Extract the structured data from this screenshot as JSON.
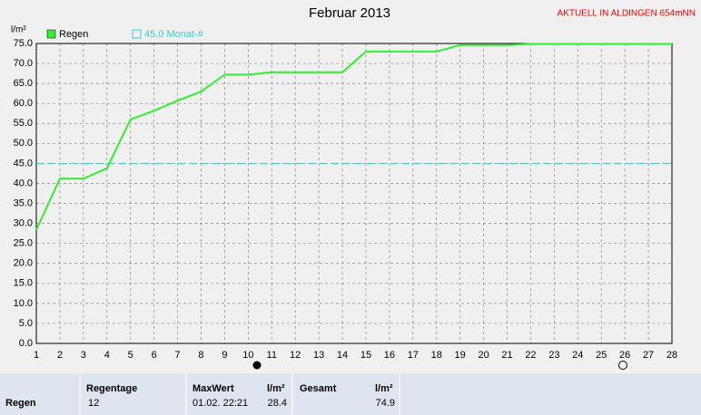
{
  "chart_data": {
    "type": "line",
    "title": "Februar 2013",
    "annotation": "AKTUELL IN ALDINGEN 654mNN",
    "y_label": "l/m²",
    "x": [
      1,
      2,
      3,
      4,
      5,
      6,
      7,
      8,
      9,
      10,
      11,
      12,
      13,
      14,
      15,
      16,
      17,
      18,
      19,
      20,
      21,
      22,
      23,
      24,
      25,
      26,
      27,
      28
    ],
    "series": [
      {
        "name": "Regen",
        "color": "#33ee33",
        "values": [
          28.4,
          41.2,
          41.2,
          43.8,
          56,
          58.2,
          60.7,
          63,
          67.2,
          67.2,
          67.8,
          67.8,
          67.8,
          67.8,
          73,
          73,
          73,
          73,
          74.6,
          74.6,
          74.6,
          74.9,
          74.9,
          74.9,
          74.9,
          74.9,
          74.9,
          74.9
        ]
      }
    ],
    "reference": {
      "value": 45,
      "label": "45.0 Monat-#",
      "color": "#33cccc"
    },
    "xlim": [
      1,
      28
    ],
    "xticks": [
      1,
      2,
      3,
      4,
      5,
      6,
      7,
      8,
      9,
      10,
      11,
      12,
      13,
      14,
      15,
      16,
      17,
      18,
      19,
      20,
      21,
      22,
      23,
      24,
      25,
      26,
      27,
      28
    ],
    "ylim": [
      0,
      75
    ],
    "yticks": [
      {
        "value": 0,
        "label": "0.0"
      },
      {
        "value": 5,
        "label": "5.0"
      },
      {
        "value": 10,
        "label": "10.0"
      },
      {
        "value": 15,
        "label": "15.0"
      },
      {
        "value": 20,
        "label": "20.0"
      },
      {
        "value": 25,
        "label": "25.0"
      },
      {
        "value": 30,
        "label": "30.0"
      },
      {
        "value": 35,
        "label": "35.0"
      },
      {
        "value": 40,
        "label": "40.0"
      },
      {
        "value": 45,
        "label": "45.0"
      },
      {
        "value": 50,
        "label": "50.0"
      },
      {
        "value": 55,
        "label": "55.0"
      },
      {
        "value": 60,
        "label": "60.0"
      },
      {
        "value": 65,
        "label": "65.0"
      },
      {
        "value": 70,
        "label": "70.0"
      },
      {
        "value": 75,
        "label": "75.0"
      }
    ],
    "grid": true
  },
  "table": {
    "row_label": "Regen",
    "regentage": {
      "header": "Regentage",
      "value": "12"
    },
    "maxwert": {
      "header": "MaxWert",
      "unit": "l/m²",
      "time": "01.02. 22:21",
      "value": "28.4"
    },
    "gesamt": {
      "header": "Gesamt",
      "unit": "l/m²",
      "value": "74.9"
    }
  }
}
